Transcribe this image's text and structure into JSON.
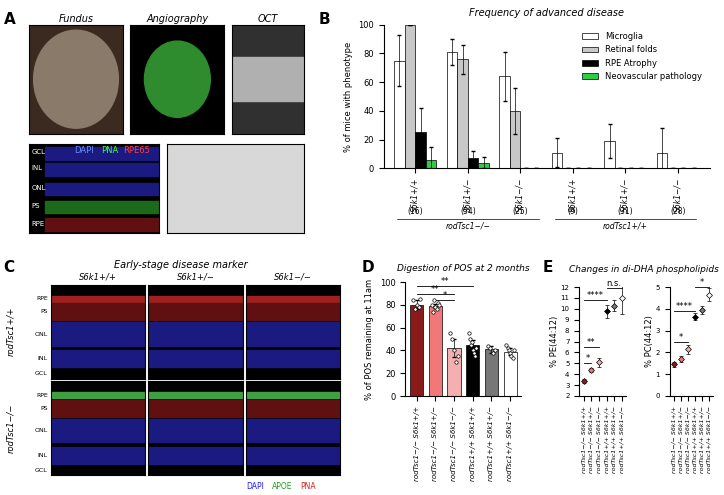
{
  "images": {
    "A": {
      "letter": "A",
      "titles": [
        "Fundus",
        "Angiography",
        "OCT"
      ],
      "layers": [
        "GCL",
        "INL",
        "ONL",
        "PS",
        "RPE"
      ],
      "stain": [
        "DAPI",
        "PNA",
        "RPE65"
      ]
    },
    "C": {
      "letter": "C",
      "title": "Early-stage disease marker",
      "columns": [
        "S6k1+/+",
        "S6k1+/−",
        "S6k1−/−"
      ],
      "rows": [
        "rodTsc1+/+",
        "rodTsc1−/−"
      ],
      "layers": [
        "RPE",
        "PS",
        "ONL",
        "INL",
        "GCL"
      ],
      "stain": [
        "DAPI",
        "APOE",
        "PNA"
      ]
    }
  },
  "chart_data": [
    {
      "letter": "B",
      "type": "bar",
      "title": "Frequency of advanced disease",
      "ylabel": "% of mice with phenotype",
      "categories": [
        "S6k1+/+",
        "S6k1+/−",
        "S6k1−/−",
        "S6k1+/+",
        "S6k1+/−",
        "S6k1−/−"
      ],
      "n_labels": [
        "(16)",
        "(54)",
        "(25)",
        "(9)",
        "(31)",
        "(28)"
      ],
      "groups": [
        {
          "label": "rodTsc1−/−",
          "categories": [
            0,
            1,
            2
          ]
        },
        {
          "label": "rodTsc1+/+",
          "categories": [
            3,
            4,
            5
          ]
        }
      ],
      "series": [
        {
          "name": "Microglia",
          "color": "#ffffff",
          "values": [
            75,
            81,
            64,
            11,
            19,
            11
          ],
          "errors": [
            18,
            9,
            17,
            10,
            12,
            17
          ]
        },
        {
          "name": "Retinal folds",
          "color": "#c8c8c8",
          "values": [
            100,
            76,
            40,
            0,
            0,
            0
          ],
          "errors": [
            0,
            10,
            16,
            0,
            0,
            0
          ]
        },
        {
          "name": "RPE Atrophy",
          "color": "#000000",
          "values": [
            25,
            7,
            0,
            0,
            0,
            0
          ],
          "errors": [
            17,
            5,
            0,
            0,
            0,
            0
          ]
        },
        {
          "name": "Neovascular pathology",
          "color": "#2ecc40",
          "values": [
            6,
            4,
            0,
            0,
            0,
            0
          ],
          "errors": [
            9,
            4,
            0,
            0,
            0,
            0
          ]
        }
      ],
      "ylim": [
        0,
        100
      ],
      "yticks": [
        0,
        20,
        40,
        60,
        80,
        100
      ],
      "legend": "upper right"
    },
    {
      "letter": "D",
      "type": "bar",
      "title": "Digestion of POS at 2 months",
      "ylabel": "% of POS remaining at 11am",
      "categories": [
        "rodTsc1−/− S6k1+/+",
        "rodTsc1−/− S6k1+/−",
        "rodTsc1−/− S6k1−/−",
        "rodTsc1+/+ S6k1+/+",
        "rodTsc1+/+ S6k1+/−",
        "rodTsc1+/+ S6k1−/−"
      ],
      "values": [
        80,
        79,
        42,
        45,
        41,
        39
      ],
      "errors": [
        4,
        2,
        8,
        4,
        3,
        3
      ],
      "points": [
        [
          84,
          76,
          80,
          78,
          85
        ],
        [
          80,
          74,
          84,
          78,
          76,
          82,
          80
        ],
        [
          55,
          50,
          40,
          30,
          35
        ],
        [
          55,
          50,
          45,
          47,
          40,
          38,
          35,
          42
        ],
        [
          44,
          42,
          38,
          40
        ],
        [
          45,
          42,
          40,
          38,
          35,
          33,
          40
        ]
      ],
      "colors": [
        "#8b1a1a",
        "#f07878",
        "#f4b0b0",
        "#000000",
        "#777777",
        "#ffffff"
      ],
      "significance": [
        {
          "from": 0,
          "to": 3,
          "y": 97,
          "label": "**"
        },
        {
          "from": 0,
          "to": 2,
          "y": 90,
          "label": "**"
        },
        {
          "from": 1,
          "to": 2,
          "y": 84,
          "label": "*"
        }
      ],
      "ylim": [
        0,
        100
      ],
      "yticks": [
        0,
        20,
        40,
        60,
        80,
        100
      ]
    },
    {
      "letter": "E",
      "type": "scatter",
      "title": "Changes in di-DHA phospholipids",
      "marker": "D",
      "ylabel": "% PE(44:12)",
      "categories": [
        "rodTsc1−/− S6k1+/+",
        "rodTsc1−/− S6k1+/−",
        "rodTsc1−/− S6k1−/−",
        "rodTsc1+/+ S6k1+/+",
        "rodTsc1+/+ S6k1+/−",
        "rodTsc1+/+ S6k1−/−"
      ],
      "values": [
        3.4,
        4.4,
        5.1,
        9.8,
        10.3,
        11.0
      ],
      "errors": [
        0.2,
        0.2,
        0.4,
        0.6,
        0.5,
        1.5
      ],
      "colors": [
        "#8b1a1a",
        "#f07878",
        "#f4b0b0",
        "#000000",
        "#777777",
        "#ffffff"
      ],
      "significance": [
        {
          "from": 0,
          "to": 3,
          "y": 10.8,
          "label": "****"
        },
        {
          "from": 0,
          "to": 2,
          "y": 6.5,
          "label": "**"
        },
        {
          "from": 0,
          "to": 1,
          "y": 5.0,
          "label": "*"
        },
        {
          "from": 3,
          "to": 5,
          "y": 11.9,
          "label": "n.s."
        }
      ],
      "ylim": [
        2,
        12
      ],
      "yticks": [
        2,
        3,
        4,
        5,
        6,
        7,
        8,
        9,
        10,
        11,
        12
      ]
    },
    {
      "type": "scatter",
      "marker": "D",
      "ylabel": "% PC(44:12)",
      "categories": [
        "rodTsc1−/− S6k1+/+",
        "rodTsc1−/− S6k1+/−",
        "rodTsc1−/− S6k1−/−",
        "rodTsc1+/+ S6k1+/+",
        "rodTsc1+/+ S6k1+/−",
        "rodTsc1+/+ S6k1−/−"
      ],
      "values": [
        1.45,
        1.7,
        2.15,
        3.65,
        3.95,
        4.65
      ],
      "errors": [
        0.1,
        0.15,
        0.2,
        0.15,
        0.2,
        0.3
      ],
      "colors": [
        "#8b1a1a",
        "#f07878",
        "#f4b0b0",
        "#000000",
        "#777777",
        "#ffffff"
      ],
      "significance": [
        {
          "from": 0,
          "to": 3,
          "y": 3.9,
          "label": "****"
        },
        {
          "from": 0,
          "to": 2,
          "y": 2.5,
          "label": "*"
        },
        {
          "from": 3,
          "to": 5,
          "y": 5.0,
          "label": "*"
        }
      ],
      "ylim": [
        0,
        5
      ],
      "yticks": [
        0,
        1,
        2,
        3,
        4,
        5
      ]
    }
  ]
}
